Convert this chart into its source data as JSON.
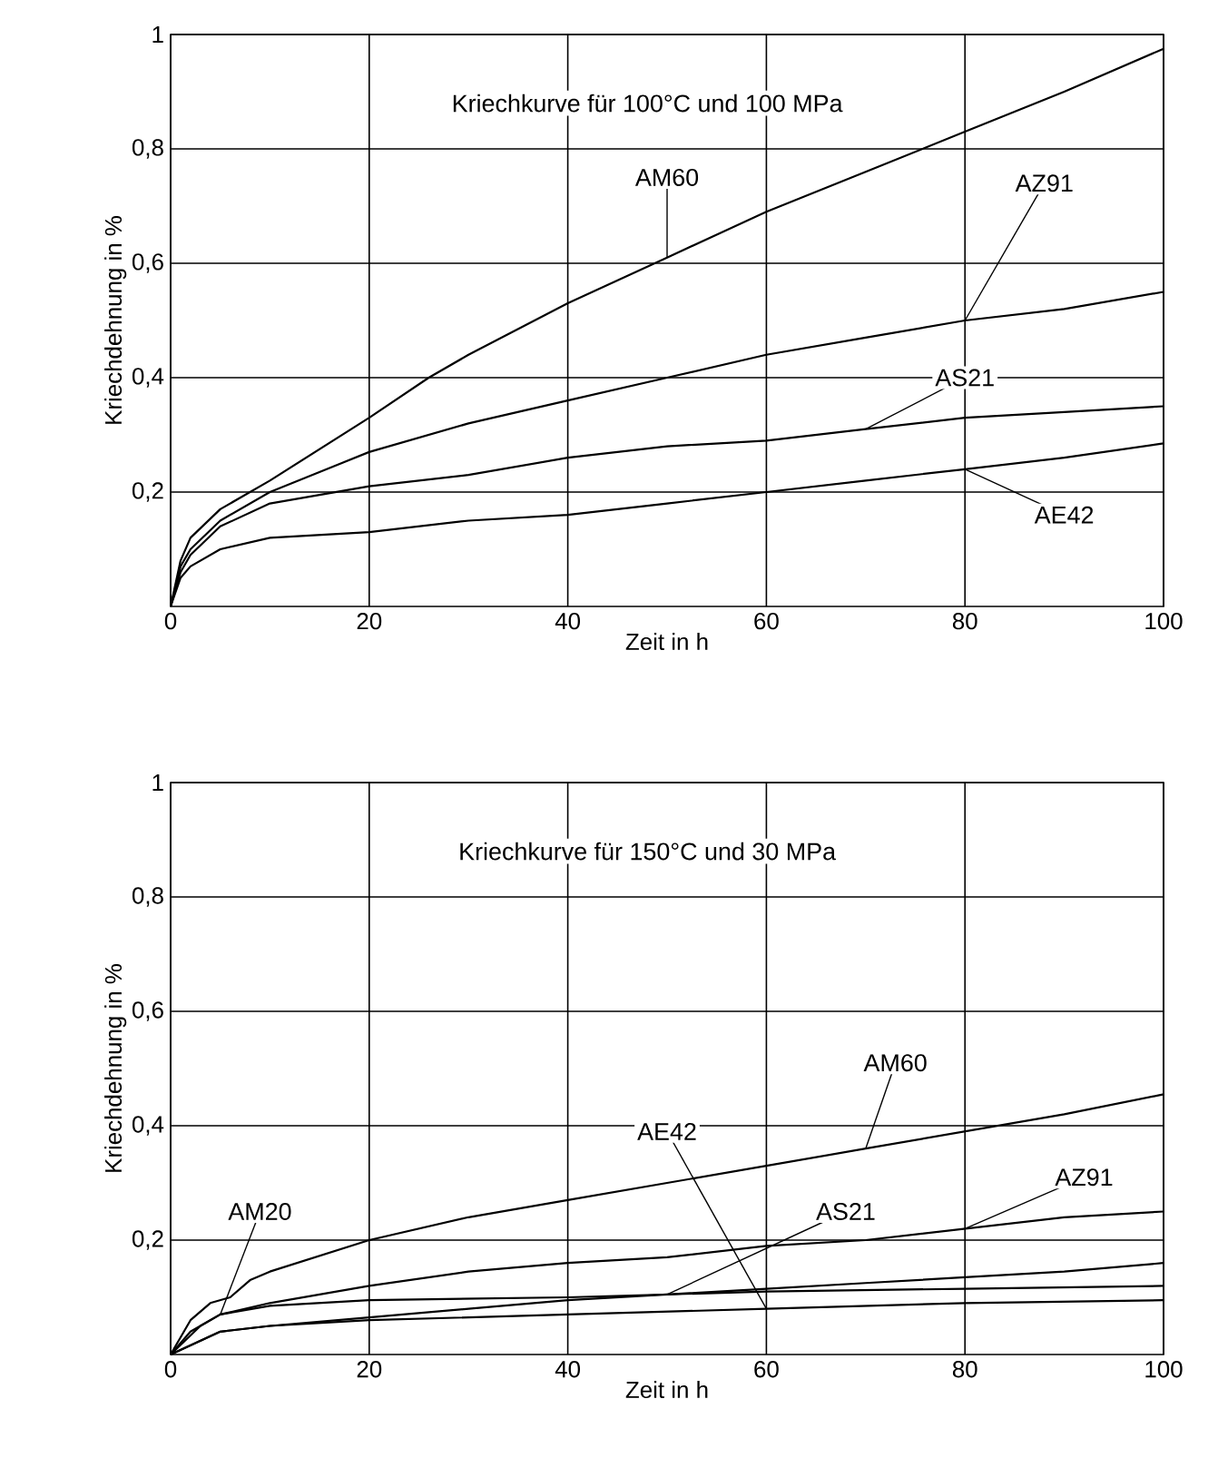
{
  "chart_data": [
    {
      "type": "line",
      "title": "Kriechkurve für 100°C und 100 MPa",
      "xlabel": "Zeit in h",
      "ylabel": "Kriechdehnung in %",
      "xlim": [
        0,
        100
      ],
      "ylim": [
        0,
        1
      ],
      "xticks": [
        0,
        20,
        40,
        60,
        80,
        100
      ],
      "yticks": [
        {
          "value": 0.2,
          "label": "0,2"
        },
        {
          "value": 0.4,
          "label": "0,4"
        },
        {
          "value": 0.6,
          "label": "0,6"
        },
        {
          "value": 0.8,
          "label": "0,8"
        },
        1
      ],
      "grid": true,
      "line_style": "solid",
      "marker": "none",
      "series": [
        {
          "name": "AM60",
          "color": "#000000",
          "x": [
            0,
            1,
            2,
            5,
            10,
            20,
            26,
            30,
            40,
            50,
            60,
            70,
            80,
            90,
            100
          ],
          "values": [
            0,
            0.08,
            0.12,
            0.17,
            0.22,
            0.33,
            0.4,
            0.44,
            0.53,
            0.61,
            0.69,
            0.76,
            0.83,
            0.9,
            0.975
          ]
        },
        {
          "name": "AZ91",
          "color": "#000000",
          "x": [
            0,
            1,
            2,
            5,
            10,
            20,
            30,
            40,
            50,
            60,
            70,
            80,
            90,
            100
          ],
          "values": [
            0,
            0.07,
            0.1,
            0.15,
            0.2,
            0.27,
            0.32,
            0.36,
            0.4,
            0.44,
            0.47,
            0.5,
            0.52,
            0.55
          ]
        },
        {
          "name": "AS21",
          "color": "#000000",
          "x": [
            0,
            1,
            2,
            5,
            10,
            20,
            30,
            40,
            50,
            60,
            70,
            80,
            90,
            100
          ],
          "values": [
            0,
            0.06,
            0.09,
            0.14,
            0.18,
            0.21,
            0.23,
            0.26,
            0.28,
            0.29,
            0.31,
            0.33,
            0.34,
            0.35
          ]
        },
        {
          "name": "AE42",
          "color": "#000000",
          "x": [
            0,
            1,
            2,
            5,
            10,
            20,
            30,
            40,
            50,
            60,
            70,
            80,
            90,
            100
          ],
          "values": [
            0,
            0.05,
            0.07,
            0.1,
            0.12,
            0.13,
            0.15,
            0.16,
            0.18,
            0.2,
            0.22,
            0.24,
            0.26,
            0.285
          ]
        }
      ]
    },
    {
      "type": "line",
      "title": "Kriechkurve für 150°C und 30 MPa",
      "xlabel": "Zeit in h",
      "ylabel": "Kriechdehnung in %",
      "xlim": [
        0,
        100
      ],
      "ylim": [
        0,
        1
      ],
      "xticks": [
        0,
        20,
        40,
        60,
        80,
        100
      ],
      "yticks": [
        {
          "value": 0.2,
          "label": "0,2"
        },
        {
          "value": 0.4,
          "label": "0,4"
        },
        {
          "value": 0.6,
          "label": "0,6"
        },
        {
          "value": 0.8,
          "label": "0,8"
        },
        1
      ],
      "grid": true,
      "line_style": "solid",
      "marker": "none",
      "series": [
        {
          "name": "AM60",
          "color": "#000000",
          "x": [
            0,
            2,
            4,
            6,
            8,
            10,
            20,
            30,
            40,
            50,
            60,
            70,
            80,
            90,
            100
          ],
          "values": [
            0,
            0.06,
            0.09,
            0.1,
            0.13,
            0.145,
            0.2,
            0.24,
            0.27,
            0.3,
            0.33,
            0.36,
            0.39,
            0.42,
            0.455
          ]
        },
        {
          "name": "AZ91",
          "color": "#000000",
          "x": [
            0,
            2,
            5,
            10,
            20,
            30,
            40,
            50,
            60,
            70,
            80,
            90,
            100
          ],
          "values": [
            0,
            0.04,
            0.07,
            0.09,
            0.12,
            0.145,
            0.16,
            0.17,
            0.19,
            0.2,
            0.22,
            0.24,
            0.25
          ]
        },
        {
          "name": "AS21",
          "color": "#000000",
          "x": [
            0,
            5,
            10,
            20,
            30,
            40,
            50,
            60,
            70,
            80,
            90,
            100
          ],
          "values": [
            0,
            0.04,
            0.05,
            0.065,
            0.08,
            0.095,
            0.105,
            0.115,
            0.125,
            0.135,
            0.145,
            0.16
          ]
        },
        {
          "name": "AM20",
          "color": "#000000",
          "x": [
            0,
            3,
            5,
            10,
            20,
            40,
            60,
            80,
            100
          ],
          "values": [
            0,
            0.05,
            0.07,
            0.085,
            0.095,
            0.1,
            0.11,
            0.115,
            0.12
          ]
        },
        {
          "name": "AE42",
          "color": "#000000",
          "x": [
            0,
            5,
            10,
            20,
            40,
            60,
            80,
            100
          ],
          "values": [
            0,
            0.04,
            0.05,
            0.06,
            0.07,
            0.08,
            0.09,
            0.095
          ]
        }
      ]
    }
  ]
}
